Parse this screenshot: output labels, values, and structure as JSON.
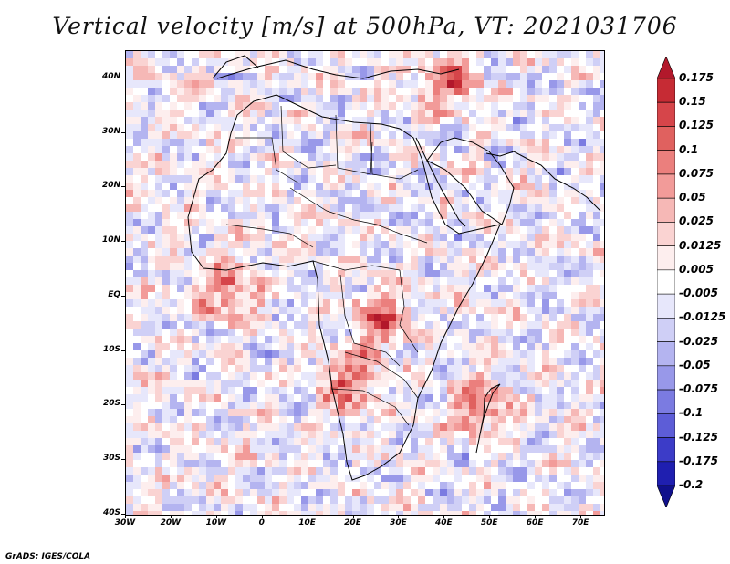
{
  "title": "Vertical velocity [m/s] at 500hPa, VT: 2021031706",
  "credit": "GrADS: IGES/COLA",
  "map": {
    "variable": "Vertical velocity",
    "units": "m/s",
    "level": "500hPa",
    "valid_time": "2021031706",
    "lon_range": [
      -30,
      75
    ],
    "lat_range": [
      -40,
      45
    ],
    "lat_ticks": [
      {
        "lat": 40,
        "label": "40N"
      },
      {
        "lat": 30,
        "label": "30N"
      },
      {
        "lat": 20,
        "label": "20N"
      },
      {
        "lat": 10,
        "label": "10N"
      },
      {
        "lat": 0,
        "label": "EQ"
      },
      {
        "lat": -10,
        "label": "10S"
      },
      {
        "lat": -20,
        "label": "20S"
      },
      {
        "lat": -30,
        "label": "30S"
      },
      {
        "lat": -40,
        "label": "40S"
      }
    ],
    "lon_ticks": [
      {
        "lon": -30,
        "label": "30W"
      },
      {
        "lon": -20,
        "label": "20W"
      },
      {
        "lon": -10,
        "label": "10W"
      },
      {
        "lon": 0,
        "label": "0"
      },
      {
        "lon": 10,
        "label": "10E"
      },
      {
        "lon": 20,
        "label": "20E"
      },
      {
        "lon": 30,
        "label": "30E"
      },
      {
        "lon": 40,
        "label": "40E"
      },
      {
        "lon": 50,
        "label": "50E"
      },
      {
        "lon": 60,
        "label": "60E"
      },
      {
        "lon": 70,
        "label": "70E"
      }
    ]
  },
  "colorbar": {
    "labels": [
      "0.175",
      "0.15",
      "0.125",
      "0.1",
      "0.075",
      "0.05",
      "0.025",
      "0.0125",
      "0.005",
      "-0.005",
      "-0.0125",
      "-0.025",
      "-0.05",
      "-0.075",
      "-0.1",
      "-0.125",
      "-0.175",
      "-0.2"
    ],
    "colors": [
      "#b2182b",
      "#c62b34",
      "#d6454a",
      "#e0615f",
      "#eb7f7d",
      "#f29b99",
      "#f6b8b6",
      "#fad3d2",
      "#fdeeee",
      "#ffffff",
      "#e7e7fb",
      "#cfcff6",
      "#b4b4f0",
      "#9898e9",
      "#7b7be1",
      "#5d5dd7",
      "#3c3cc8",
      "#1f1fb0",
      "#10108c"
    ],
    "colors_note": "top to bottom"
  },
  "regions": [
    {
      "name": "Gulf of Guinea coast",
      "lon": -8,
      "lat": 2,
      "sign": "ascent"
    },
    {
      "name": "Central Africa",
      "lon": 25,
      "lat": -4,
      "sign": "ascent"
    },
    {
      "name": "Madagascar",
      "lon": 47,
      "lat": -19,
      "sign": "ascent"
    },
    {
      "name": "Angola",
      "lon": 18,
      "lat": -15,
      "sign": "ascent"
    },
    {
      "name": "Turkey/Caucasus",
      "lon": 40,
      "lat": 40,
      "sign": "ascent"
    }
  ]
}
